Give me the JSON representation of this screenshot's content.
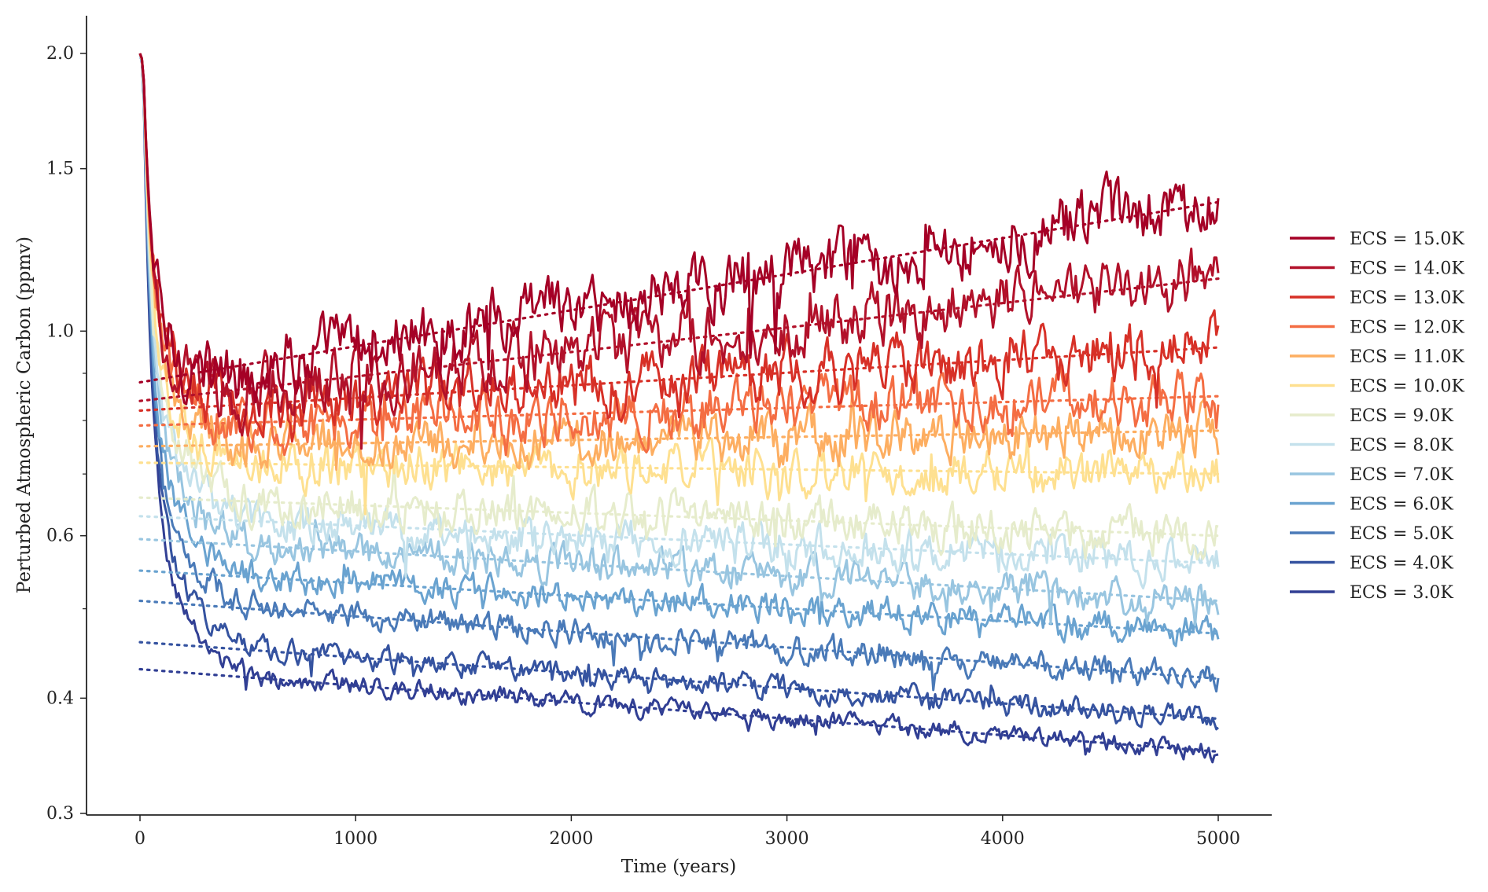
{
  "chart_data": {
    "type": "line",
    "title": "",
    "xlabel": "Time (years)",
    "ylabel": "Perturbed Atmospheric Carbon (ppmv)",
    "xlim": [
      -250,
      5250
    ],
    "ylim": [
      0.3,
      2.15
    ],
    "yscale": "log",
    "grid": false,
    "legend_placement": "right, outside plot",
    "x_ticks": [
      0,
      1000,
      2000,
      3000,
      4000,
      5000
    ],
    "x_tick_labels": [
      "0",
      "1000",
      "2000",
      "3000",
      "4000",
      "5000"
    ],
    "y_ticks": [
      0.3,
      0.4,
      0.6,
      1.0,
      1.5,
      2.0
    ],
    "y_tick_labels": [
      "0.3",
      "0.4",
      "0.6",
      "1.0",
      "1.5",
      "2.0"
    ],
    "y_minor_ticks": [
      0.5,
      0.7,
      0.8,
      0.9
    ],
    "initial_value": 2.0,
    "x_end": 5000,
    "note_style": "solid lines are noisy simulations; dotted lines are trend fits",
    "series": [
      {
        "name": "ECS = 15.0K",
        "color": "#a50026",
        "min": 0.82,
        "trend_start": 0.88,
        "trend_end": 1.38,
        "end": 1.3
      },
      {
        "name": "ECS = 14.0K",
        "color": "#b2112a",
        "min": 0.8,
        "trend_start": 0.84,
        "trend_end": 1.14,
        "end": 1.12
      },
      {
        "name": "ECS = 13.0K",
        "color": "#d73027",
        "min": 0.81,
        "trend_start": 0.82,
        "trend_end": 0.96,
        "end": 0.93
      },
      {
        "name": "ECS = 12.0K",
        "color": "#f46d43",
        "min": 0.78,
        "trend_start": 0.79,
        "trend_end": 0.85,
        "end": 0.84
      },
      {
        "name": "ECS = 11.0K",
        "color": "#fdae61",
        "min": 0.75,
        "trend_start": 0.75,
        "trend_end": 0.78,
        "end": 0.78
      },
      {
        "name": "ECS = 10.0K",
        "color": "#fee090",
        "min": 0.71,
        "trend_start": 0.72,
        "trend_end": 0.7,
        "end": 0.7
      },
      {
        "name": "ECS = 9.0K",
        "color": "#e6eccc",
        "min": 0.66,
        "trend_start": 0.66,
        "trend_end": 0.6,
        "end": 0.61
      },
      {
        "name": "ECS = 8.0K",
        "color": "#c4e1ec",
        "min": 0.62,
        "trend_start": 0.63,
        "trend_end": 0.56,
        "end": 0.56
      },
      {
        "name": "ECS = 7.0K",
        "color": "#98c5e0",
        "min": 0.59,
        "trend_start": 0.595,
        "trend_end": 0.51,
        "end": 0.52
      },
      {
        "name": "ECS = 6.0K",
        "color": "#6aa3d0",
        "min": 0.55,
        "trend_start": 0.55,
        "trend_end": 0.47,
        "end": 0.49
      },
      {
        "name": "ECS = 5.0K",
        "color": "#4a7ab8",
        "min": 0.51,
        "trend_start": 0.51,
        "trend_end": 0.42,
        "end": 0.44
      },
      {
        "name": "ECS = 4.0K",
        "color": "#3553a0",
        "min": 0.46,
        "trend_start": 0.46,
        "trend_end": 0.38,
        "end": 0.4
      },
      {
        "name": "ECS = 3.0K",
        "color": "#313f94",
        "min": 0.43,
        "trend_start": 0.43,
        "trend_end": 0.35,
        "end": 0.35
      }
    ]
  }
}
